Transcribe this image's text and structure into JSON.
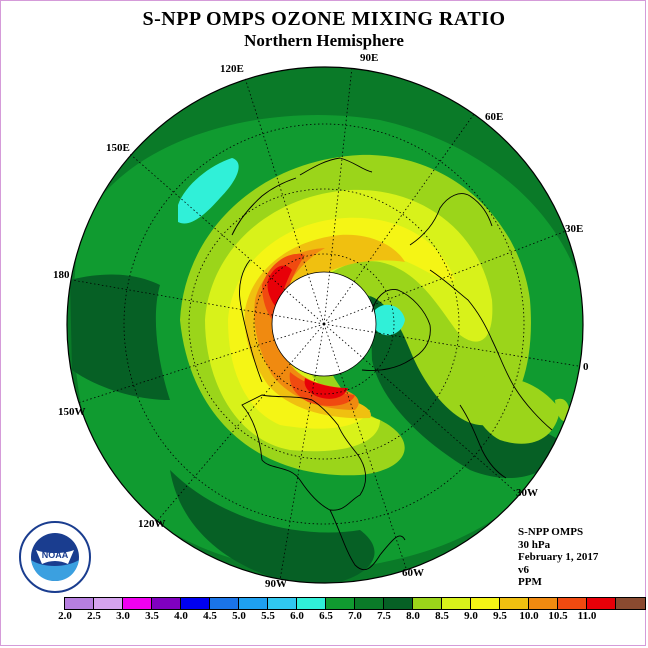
{
  "title": "S-NPP OMPS OZONE MIXING RATIO",
  "subtitle": "Northern Hemisphere",
  "longitude_labels": [
    "90E",
    "60E",
    "30E",
    "0",
    "30W",
    "60W",
    "90W",
    "120W",
    "150W",
    "180",
    "150E",
    "120E"
  ],
  "info": {
    "instrument": "S-NPP OMPS",
    "level": "30 hPa",
    "date": "February 1, 2017",
    "version": "v6",
    "units": "PPM"
  },
  "colorbar": {
    "labels": [
      "2.0",
      "2.5",
      "3.0",
      "3.5",
      "4.0",
      "4.5",
      "5.0",
      "5.5",
      "6.0",
      "6.5",
      "7.0",
      "7.5",
      "8.0",
      "8.5",
      "9.0",
      "9.5",
      "10.0",
      "10.5",
      "11.0"
    ],
    "colors": [
      "#b77fe0",
      "#d5a3ee",
      "#f000f0",
      "#8000c0",
      "#0000f0",
      "#1a74e8",
      "#1ea0f0",
      "#30c8f0",
      "#30f0d8",
      "#109b30",
      "#0a7a28",
      "#066025",
      "#9bd51a",
      "#d8f21a",
      "#f5f515",
      "#f0c010",
      "#f08a10",
      "#f04a10",
      "#e80008",
      "#8a4a30"
    ]
  },
  "logo": {
    "text": "NOAA",
    "ring_text": "NATIONAL OCEANIC AND ATMOSPHERIC ADMINISTRATION · U.S. DEPARTMENT OF COMMERCE"
  }
}
